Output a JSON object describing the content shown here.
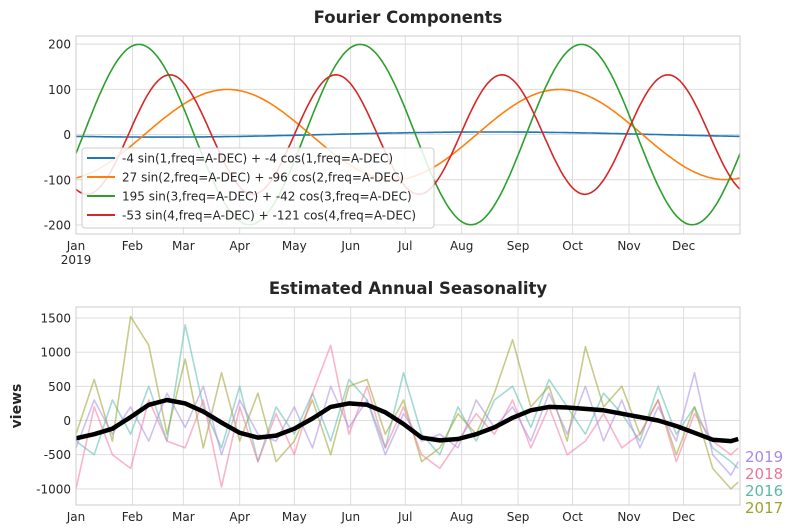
{
  "chart_data": [
    {
      "type": "line",
      "title": "Fourier Components",
      "xlabel": "",
      "ylabel": "",
      "ylim": [
        -220,
        218
      ],
      "yticks": [
        200,
        100,
        0,
        -100,
        -200
      ],
      "xlim": [
        "2019-01-01",
        "2019-12-31"
      ],
      "xticks": [
        "Jan",
        "Feb",
        "Mar",
        "Apr",
        "May",
        "Jun",
        "Jul",
        "Aug",
        "Sep",
        "Oct",
        "Nov",
        "Dec"
      ],
      "xtick_year": "2019",
      "period_days": 365,
      "grid": true,
      "legend_placement": "lower-left",
      "series": [
        {
          "name": "-4 sin(1,freq=A-DEC) + -4 cos(1,freq=A-DEC)",
          "order": 1,
          "sin": -4,
          "cos": -4,
          "color": "#1f77b4"
        },
        {
          "name": "27 sin(2,freq=A-DEC) + -96 cos(2,freq=A-DEC)",
          "order": 2,
          "sin": 27,
          "cos": -96,
          "color": "#ff7f0e"
        },
        {
          "name": "195 sin(3,freq=A-DEC) + -42 cos(3,freq=A-DEC)",
          "order": 3,
          "sin": 195,
          "cos": -42,
          "color": "#2ca02c"
        },
        {
          "name": "-53 sin(4,freq=A-DEC) + -121 cos(4,freq=A-DEC)",
          "order": 4,
          "sin": -53,
          "cos": -121,
          "color": "#d62728"
        }
      ]
    },
    {
      "type": "line",
      "title": "Estimated Annual Seasonality",
      "xlabel": "",
      "ylabel": "views",
      "ylim": [
        -1235,
        1660
      ],
      "yticks": [
        1500,
        1000,
        500,
        0,
        -500,
        -1000
      ],
      "xticks": [
        "Jan",
        "Feb",
        "Mar",
        "Apr",
        "May",
        "Jun",
        "Jul",
        "Aug",
        "Sep",
        "Oct",
        "Nov",
        "Dec"
      ],
      "grid": true,
      "x": [
        "01-01",
        "01-11",
        "01-21",
        "01-31",
        "02-10",
        "02-20",
        "03-02",
        "03-12",
        "03-22",
        "04-01",
        "04-11",
        "04-21",
        "05-01",
        "05-11",
        "05-21",
        "05-31",
        "06-10",
        "06-20",
        "06-30",
        "07-10",
        "07-20",
        "07-30",
        "08-09",
        "08-19",
        "08-29",
        "09-08",
        "09-18",
        "09-28",
        "10-08",
        "10-18",
        "10-28",
        "11-07",
        "11-17",
        "11-27",
        "12-07",
        "12-17",
        "12-27",
        "12-31"
      ],
      "series": [
        {
          "name": "2016",
          "color": "rgba(102,194,180,0.6)",
          "label_color": "#5cb8a8",
          "values": [
            -300,
            -500,
            300,
            -200,
            500,
            -300,
            1400,
            200,
            -400,
            500,
            -600,
            200,
            -200,
            400,
            -300,
            600,
            300,
            -400,
            700,
            -200,
            -500,
            200,
            -300,
            300,
            500,
            -100,
            600,
            200,
            -200,
            400,
            100,
            -300,
            500,
            -200,
            200,
            -400,
            -600,
            -700
          ]
        },
        {
          "name": "2017",
          "color": "rgba(154,160,40,0.55)",
          "label_color": "#a0a030",
          "values": [
            -200,
            600,
            -300,
            1520,
            1100,
            -200,
            900,
            -400,
            700,
            -300,
            400,
            -600,
            -300,
            300,
            -500,
            500,
            600,
            -200,
            300,
            -600,
            -400,
            100,
            -200,
            400,
            1180,
            200,
            500,
            -300,
            1080,
            200,
            500,
            -200,
            300,
            -500,
            200,
            -700,
            -1000,
            -900
          ]
        },
        {
          "name": "2018",
          "color": "rgba(245,120,160,0.55)",
          "label_color": "#e8789a",
          "values": [
            -1000,
            200,
            -500,
            -700,
            300,
            -300,
            -400,
            300,
            -970,
            200,
            -600,
            100,
            -500,
            400,
            1100,
            -200,
            500,
            -400,
            200,
            -500,
            -700,
            -300,
            100,
            -200,
            300,
            -400,
            200,
            -500,
            -300,
            100,
            -400,
            -200,
            300,
            -600,
            100,
            -300,
            -500,
            -400
          ]
        },
        {
          "name": "2019",
          "color": "rgba(170,140,230,0.55)",
          "label_color": "#a58ce6",
          "values": [
            -400,
            300,
            -200,
            200,
            -300,
            400,
            -100,
            500,
            -500,
            300,
            -200,
            -300,
            200,
            -400,
            500,
            -100,
            300,
            -500,
            100,
            -300,
            -200,
            -400,
            300,
            -100,
            200,
            -300,
            400,
            -200,
            500,
            -300,
            300,
            -400,
            200,
            -300,
            700,
            -500,
            -800,
            -600
          ]
        },
        {
          "color": "#000000",
          "values": [
            -260,
            -200,
            -120,
            50,
            230,
            300,
            250,
            130,
            -30,
            -180,
            -250,
            -220,
            -120,
            30,
            200,
            250,
            230,
            120,
            -50,
            -250,
            -290,
            -270,
            -200,
            -100,
            40,
            150,
            200,
            190,
            170,
            150,
            100,
            50,
            0,
            -80,
            -180,
            -280,
            -300,
            -270
          ]
        }
      ]
    }
  ]
}
